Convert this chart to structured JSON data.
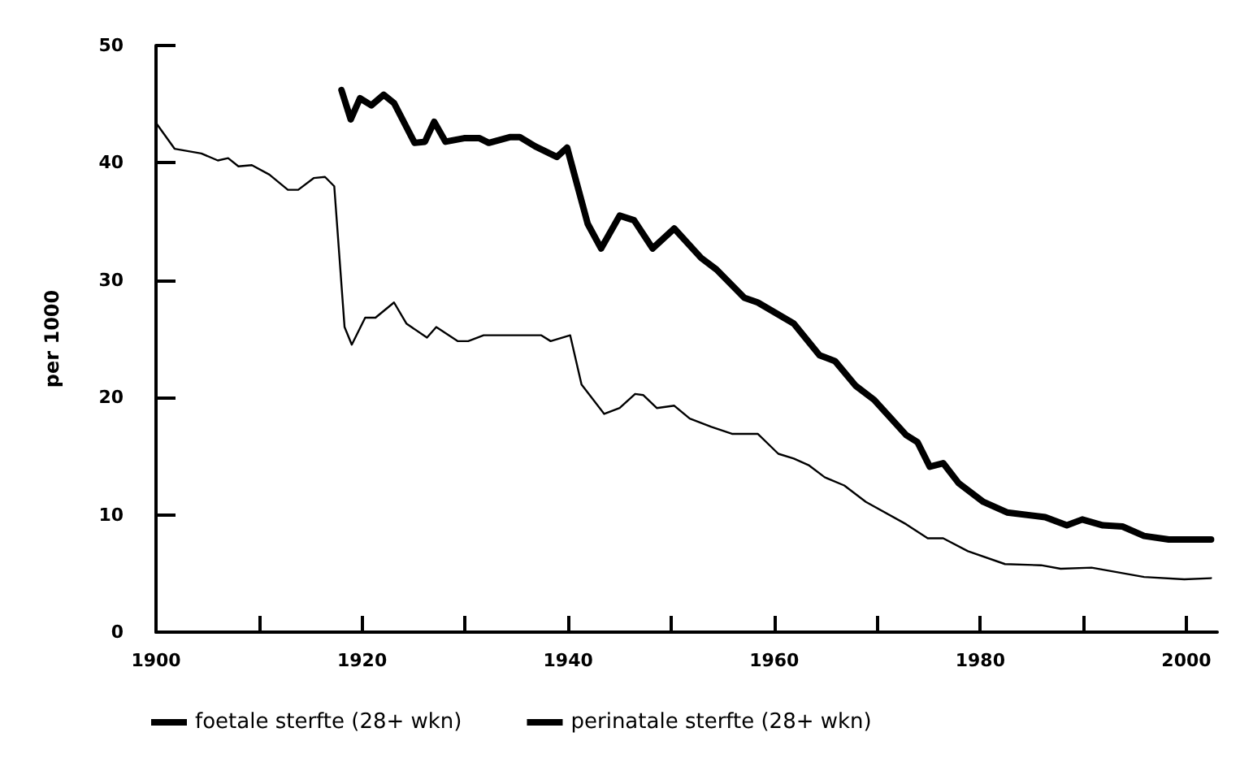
{
  "chart_data": {
    "type": "line",
    "ylabel": "per 1000",
    "xlim": [
      1900,
      2003
    ],
    "ylim": [
      0,
      50
    ],
    "xticks": [
      1900,
      {
        "value": 1910,
        "label": null
      },
      1920,
      {
        "value": 1930,
        "label": null
      },
      1940,
      {
        "value": 1950,
        "label": null
      },
      1960,
      {
        "value": 1970,
        "label": null
      },
      1980,
      {
        "value": 1990,
        "label": null
      },
      2000
    ],
    "yticks": [
      0,
      10,
      20,
      30,
      40,
      50
    ],
    "grid": false,
    "legend": "bottom",
    "marker": "none",
    "line_style": "solid",
    "series": [
      {
        "name": "foetale sterfte (28+ wkn)",
        "color": "#000000",
        "x": [
          1900,
          1901.8,
          1904.4,
          1906,
          1907,
          1908,
          1909.3,
          1911,
          1912.8,
          1913.8,
          1915.3,
          1916.4,
          1917.3,
          1918.3,
          1919,
          1920.3,
          1921.3,
          1923.1,
          1924.3,
          1926.3,
          1927.2,
          1929.3,
          1930.3,
          1931.8,
          1937.4,
          1938.3,
          1940.2,
          1941.3,
          1943.5,
          1945,
          1946.5,
          1947.3,
          1948.6,
          1950.3,
          1951.8,
          1953.9,
          1955.9,
          1958.4,
          1960.4,
          1961.9,
          1963.4,
          1964.9,
          1966.8,
          1968.9,
          1972.8,
          1974.9,
          1976.4,
          1978.8,
          1982.4,
          1985.9,
          1987.8,
          1990.8,
          1995.9,
          1999.8,
          2002.4
        ],
        "values": [
          43.4,
          41.2,
          40.8,
          40.2,
          40.4,
          39.7,
          39.8,
          39,
          37.7,
          37.7,
          38.7,
          38.8,
          38,
          26,
          24.5,
          26.8,
          26.8,
          28.1,
          26.3,
          25.1,
          26,
          24.8,
          24.8,
          25.3,
          25.3,
          24.8,
          25.3,
          21.1,
          18.6,
          19.1,
          20.3,
          20.2,
          19.1,
          19.3,
          18.2,
          17.5,
          16.9,
          16.9,
          15.2,
          14.8,
          14.2,
          13.2,
          12.5,
          11.1,
          9.2,
          8,
          8,
          6.9,
          5.8,
          5.7,
          5.4,
          5.5,
          4.7,
          4.5,
          4.6
        ]
      },
      {
        "name": "perinatale sterfte (28+ wkn)",
        "color": "#000000",
        "x": [
          1918,
          1918.9,
          1919.8,
          1920.9,
          1922.1,
          1923.1,
          1925.1,
          1926.1,
          1927,
          1928.1,
          1929.9,
          1931.4,
          1932.3,
          1934.4,
          1935.3,
          1936.8,
          1938.9,
          1939.9,
          1941.9,
          1943.2,
          1945,
          1946.4,
          1948.2,
          1950.3,
          1952.9,
          1954.4,
          1957.1,
          1958.4,
          1961.9,
          1964.4,
          1965.9,
          1967.9,
          1969.7,
          1972.8,
          1973.9,
          1975.1,
          1976.4,
          1977.9,
          1980.3,
          1982.6,
          1986.3,
          1988.4,
          1989.9,
          1991.9,
          1993.8,
          1995.9,
          1998.3,
          2002.4
        ],
        "values": [
          46.2,
          43.7,
          45.5,
          44.9,
          45.8,
          45.1,
          41.7,
          41.8,
          43.5,
          41.8,
          42.1,
          42.1,
          41.7,
          42.2,
          42.2,
          41.4,
          40.5,
          41.3,
          34.8,
          32.7,
          35.5,
          35.1,
          32.7,
          34.4,
          31.9,
          30.9,
          28.5,
          28.1,
          26.3,
          23.6,
          23.1,
          21,
          19.8,
          16.8,
          16.2,
          14.1,
          14.4,
          12.7,
          11.1,
          10.2,
          9.8,
          9.1,
          9.6,
          9.1,
          9,
          8.2,
          7.9,
          7.9
        ]
      }
    ]
  }
}
